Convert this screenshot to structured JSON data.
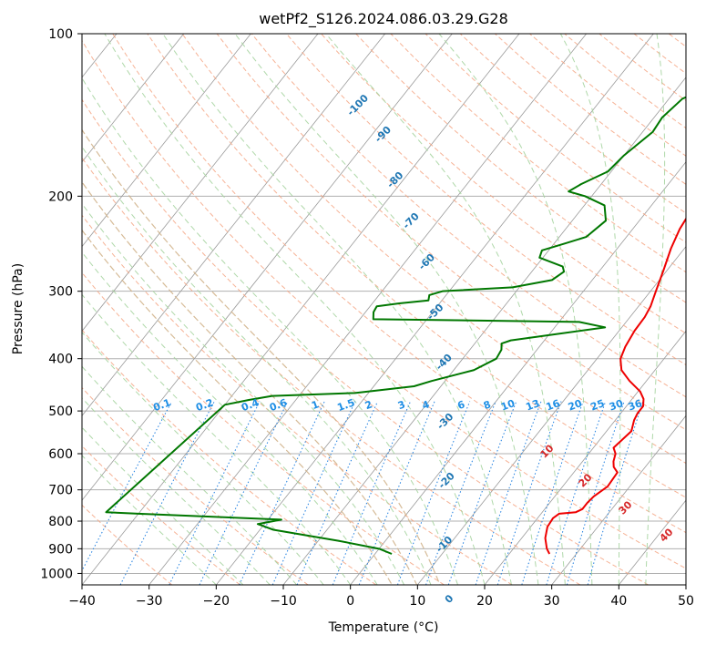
{
  "chart_data": {
    "type": "line",
    "title": "wetPf2_S126.2024.086.03.29.G28",
    "xlabel": "Temperature (°C)",
    "ylabel": "Pressure (hPa)",
    "xlim": [
      -40,
      50
    ],
    "ylim": [
      1050,
      100
    ],
    "y_scale": "log",
    "x_ticks": [
      "−40",
      "−30",
      "−20",
      "−10",
      "0",
      "10",
      "20",
      "30",
      "40",
      "50"
    ],
    "x_tick_values": [
      -40,
      -30,
      -20,
      -10,
      0,
      10,
      20,
      30,
      40,
      50
    ],
    "y_ticks": [
      "100",
      "200",
      "300",
      "400",
      "500",
      "600",
      "700",
      "800",
      "900",
      "1000"
    ],
    "y_tick_values": [
      100,
      200,
      300,
      400,
      500,
      600,
      700,
      800,
      900,
      1000
    ],
    "grid": true,
    "colors": {
      "temperature": "#ee0000",
      "dewpoint": "#007700",
      "isotherm": "#999999",
      "dry_adiabat": "#f4a582",
      "moist_adiabat": "#a6d4a0",
      "mixing_ratio": "#1f7fe0",
      "dry_label": "#d62728",
      "moist_label": "#1f77b4",
      "mixing_label": "#1f8fe5",
      "dcape": "#d2b48c",
      "grid": "#b0b0b0"
    },
    "series": [
      {
        "key": "temperature",
        "values": [
          [
            26.0,
            920
          ],
          [
            25.0,
            900
          ],
          [
            23.5,
            860
          ],
          [
            22.5,
            820
          ],
          [
            22.3,
            790
          ],
          [
            22.7,
            775
          ],
          [
            25.0,
            770
          ],
          [
            25.6,
            760
          ],
          [
            25.6,
            740
          ],
          [
            25.8,
            720
          ],
          [
            26.7,
            690
          ],
          [
            26.5,
            650
          ],
          [
            25.3,
            635
          ],
          [
            24.6,
            620
          ],
          [
            24.0,
            600
          ],
          [
            23.0,
            585
          ],
          [
            23.7,
            545
          ],
          [
            22.8,
            520
          ],
          [
            22.5,
            505
          ],
          [
            22.5,
            490
          ],
          [
            21.7,
            475
          ],
          [
            20.3,
            460
          ],
          [
            17.5,
            440
          ],
          [
            15.0,
            420
          ],
          [
            13.5,
            400
          ],
          [
            12.8,
            380
          ],
          [
            12.3,
            355
          ],
          [
            12.2,
            335
          ],
          [
            11.8,
            320
          ],
          [
            10.8,
            300
          ],
          [
            9.5,
            275
          ],
          [
            8.0,
            250
          ],
          [
            7.0,
            230
          ],
          [
            6.5,
            212
          ],
          [
            7.0,
            200
          ],
          [
            7.3,
            190
          ],
          [
            7.3,
            175
          ],
          [
            6.5,
            160
          ],
          [
            5.6,
            145
          ],
          [
            4.8,
            130
          ],
          [
            4.2,
            120
          ],
          [
            4.3,
            110
          ],
          [
            4.9,
            105
          ],
          [
            6.0,
            100
          ]
        ]
      },
      {
        "key": "dewpoint",
        "values": [
          [
            2.5,
            920
          ],
          [
            0.0,
            900
          ],
          [
            -7.0,
            870
          ],
          [
            -18.0,
            830
          ],
          [
            -21.0,
            810
          ],
          [
            -18.0,
            795
          ],
          [
            -40.0,
            775
          ],
          [
            -45.0,
            770
          ],
          [
            -40.0,
            487
          ],
          [
            -37.0,
            477
          ],
          [
            -34.0,
            469
          ],
          [
            -22.0,
            463
          ],
          [
            -14.0,
            450
          ],
          [
            -12.0,
            440
          ],
          [
            -7.0,
            420
          ],
          [
            -5.0,
            400
          ],
          [
            -5.3,
            385
          ],
          [
            -6.0,
            375
          ],
          [
            -5.0,
            370
          ],
          [
            7.5,
            350
          ],
          [
            3.0,
            342
          ],
          [
            -28.0,
            338
          ],
          [
            -28.8,
            328
          ],
          [
            -29.0,
            320
          ],
          [
            -26.0,
            316
          ],
          [
            -22.0,
            312
          ],
          [
            -22.5,
            305
          ],
          [
            -21.0,
            300
          ],
          [
            -11.0,
            295
          ],
          [
            -6.0,
            286
          ],
          [
            -5.2,
            276
          ],
          [
            -6.0,
            270
          ],
          [
            -10.5,
            260
          ],
          [
            -11.0,
            252
          ],
          [
            -8.5,
            245
          ],
          [
            -6.0,
            238
          ],
          [
            -5.0,
            222
          ],
          [
            -7.0,
            208
          ],
          [
            -11.0,
            200
          ],
          [
            -14.0,
            196
          ],
          [
            -13.0,
            190
          ],
          [
            -10.5,
            180
          ],
          [
            -10.0,
            168
          ],
          [
            -8.5,
            152
          ],
          [
            -8.8,
            143
          ],
          [
            -8.0,
            132
          ],
          [
            -3.0,
            120
          ],
          [
            -1.5,
            113
          ],
          [
            -1.9,
            106
          ],
          [
            -2.0,
            100
          ]
        ]
      }
    ],
    "dry_adiabat_labels": [
      "10",
      "20",
      "30",
      "40"
    ],
    "moist_adiabat_labels": [
      "-100",
      "-90",
      "-80",
      "-70",
      "-60",
      "-50",
      "-40",
      "-30",
      "-20",
      "-10",
      "0"
    ],
    "mixing_ratio_labels": [
      "0.1",
      "0.2",
      "0.4",
      "0.6",
      "1",
      "1.5",
      "2",
      "3",
      "4",
      "6",
      "8",
      "10",
      "13",
      "16",
      "20",
      "25",
      "30",
      "36"
    ]
  }
}
